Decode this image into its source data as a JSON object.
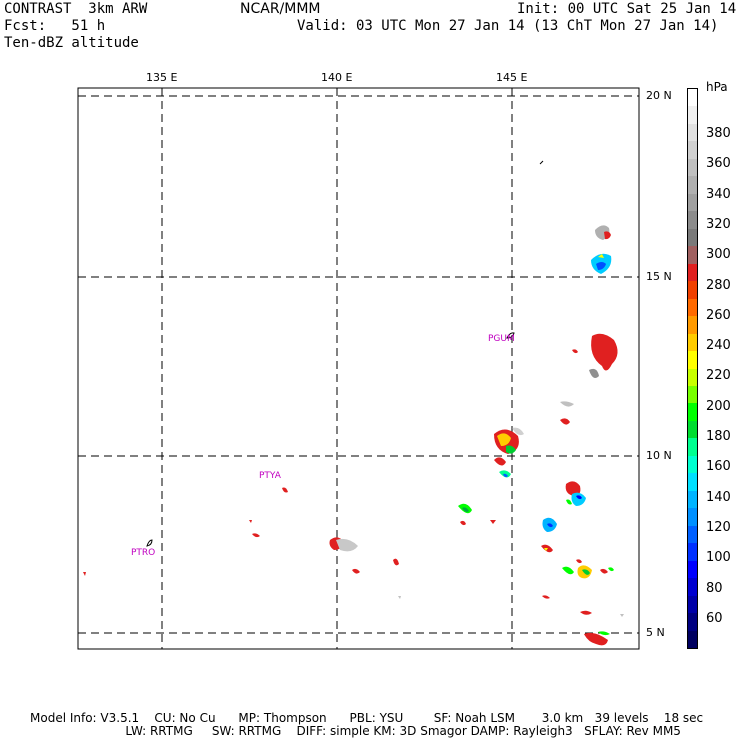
{
  "header": {
    "model": "CONTRAST  3km ARW",
    "org": "NCAR/MMM",
    "init": "Init: 00 UTC Sat 25 Jan 14",
    "fcst": "Fcst:   51 h",
    "valid": "Valid: 03 UTC Mon 27 Jan 14 (13 ChT Mon 27 Jan 14)",
    "field": "Ten-dBZ altitude"
  },
  "map": {
    "lon_labels": [
      "135 E",
      "140 E",
      "145 E"
    ],
    "lat_labels": [
      "20 N",
      "15 N",
      "10 N",
      "5 N"
    ],
    "stations": [
      "PGUM",
      "PTYA",
      "PTRO"
    ]
  },
  "colorbar": {
    "unit": "hPa",
    "labels": [
      "380",
      "360",
      "340",
      "320",
      "300",
      "280",
      "260",
      "240",
      "220",
      "200",
      "180",
      "160",
      "140",
      "120",
      "100",
      "80",
      "60"
    ],
    "colors": [
      "#ffffff",
      "#f0f0f0",
      "#e0e0e0",
      "#d0d0d0",
      "#c0c0c0",
      "#b0b0b0",
      "#a0a0a0",
      "#8c8c8c",
      "#7a7a7a",
      "#a06060",
      "#e02020",
      "#f04000",
      "#ff6a00",
      "#ff9a00",
      "#ffcc00",
      "#ffff00",
      "#c8ff00",
      "#78ff00",
      "#00ff00",
      "#00dd30",
      "#00ff90",
      "#00ffd0",
      "#00e0ff",
      "#00b4ff",
      "#0090ff",
      "#0060ff",
      "#0030ff",
      "#0000ff",
      "#0000d0",
      "#0000a8",
      "#000080",
      "#000060"
    ]
  },
  "footer": {
    "line1": "Model Info: V3.5.1    CU: No Cu      MP: Thompson      PBL: YSU        SF: Noah LSM       3.0 km   39 levels    18 sec",
    "line2": "                         LW: RRTMG     SW: RRTMG    DIFF: simple KM: 3D Smagor DAMP: Rayleigh3   SFLAY: Rev MM5"
  }
}
